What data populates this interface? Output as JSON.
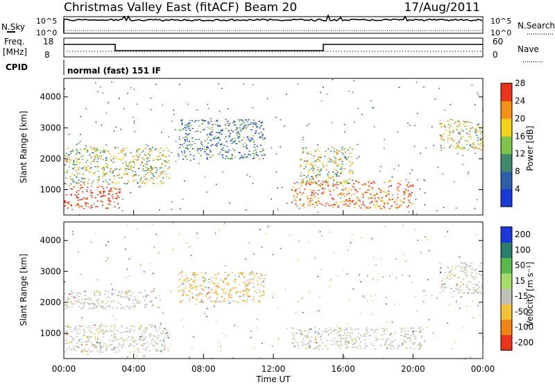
{
  "header": {
    "title": "Christmas Valley East (fitACF)",
    "beam": "Beam 20",
    "date": "17/Aug/2011"
  },
  "status_panels": {
    "nsky_label": "N.Sky",
    "nsearch_label": "N.Search",
    "noise_ticks_left": [
      "10^5",
      "10^0"
    ],
    "noise_ticks_right": [
      "10^5",
      "10^0"
    ],
    "freq_label": "Freq.",
    "freq_unit": "[MHz]",
    "freq_ticks": [
      "18",
      "8"
    ],
    "nave_label": "Nave",
    "nave_ticks": [
      "60",
      "0"
    ],
    "cpid_label": "CPID",
    "cpid_value": "normal (fast) 151 IF"
  },
  "chart_data": [
    {
      "type": "heatmap",
      "panel": "power",
      "ylabel": "Slant Range [km]",
      "xlabel": "",
      "yticks": [
        "1000",
        "2000",
        "3000",
        "4000"
      ],
      "ylim": [
        180,
        4600
      ],
      "xlim": [
        "00:00",
        "24:00"
      ],
      "colorbar_label": "Power [dB]",
      "colorbar_ticks": [
        "4",
        "8",
        "12",
        "16",
        "20",
        "24",
        "28"
      ],
      "colorbar_colors": [
        "#1a3ad8",
        "#2c5fa8",
        "#3f8a6c",
        "#7fc24a",
        "#f2d21a",
        "#f29018",
        "#e8341a"
      ],
      "regions": [
        {
          "t0": 0.0,
          "t1": 3.2,
          "r0": 400,
          "r1": 1200,
          "level": 7
        },
        {
          "t0": 0.0,
          "t1": 6.0,
          "r0": 1200,
          "r1": 2400,
          "level": 4
        },
        {
          "t0": 6.5,
          "t1": 11.5,
          "r0": 2000,
          "r1": 3300,
          "level": 2
        },
        {
          "t0": 13.0,
          "t1": 20.0,
          "r0": 400,
          "r1": 1300,
          "level": 6
        },
        {
          "t0": 13.5,
          "t1": 16.5,
          "r0": 1200,
          "r1": 2400,
          "level": 4
        },
        {
          "t0": 21.5,
          "t1": 24.0,
          "r0": 2300,
          "r1": 3300,
          "level": 4
        }
      ]
    },
    {
      "type": "heatmap",
      "panel": "velocity",
      "ylabel": "Slant Range [km]",
      "xlabel": "Time UT",
      "yticks": [
        "1000",
        "2000",
        "3000",
        "4000"
      ],
      "ylim": [
        180,
        4600
      ],
      "xticks": [
        "00:00",
        "04:00",
        "08:00",
        "12:00",
        "16:00",
        "20:00",
        "00:00"
      ],
      "colorbar_label": "Velocity [m s⁻¹]",
      "colorbar_ticks": [
        "200",
        "100",
        "50",
        "15",
        "-15",
        "-50",
        "-100",
        "-200"
      ],
      "colorbar_colors": [
        "#1a3ad8",
        "#2a7d6a",
        "#5ab84a",
        "#a6dc6a",
        "#c0c0b8",
        "#f2c23a",
        "#f08418",
        "#e8341a"
      ],
      "regions": [
        {
          "t0": 0.0,
          "t1": 6.0,
          "r0": 400,
          "r1": 1300,
          "class": "ground"
        },
        {
          "t0": 0.0,
          "t1": 5.5,
          "r0": 1800,
          "r1": 2400,
          "class": "ground"
        },
        {
          "t0": 6.5,
          "t1": 11.5,
          "r0": 2000,
          "r1": 3000,
          "class": "slow-negative"
        },
        {
          "t0": 13.0,
          "t1": 20.5,
          "r0": 500,
          "r1": 1200,
          "class": "ground"
        },
        {
          "t0": 21.5,
          "t1": 24.0,
          "r0": 2300,
          "r1": 3300,
          "class": "ground"
        }
      ]
    }
  ]
}
